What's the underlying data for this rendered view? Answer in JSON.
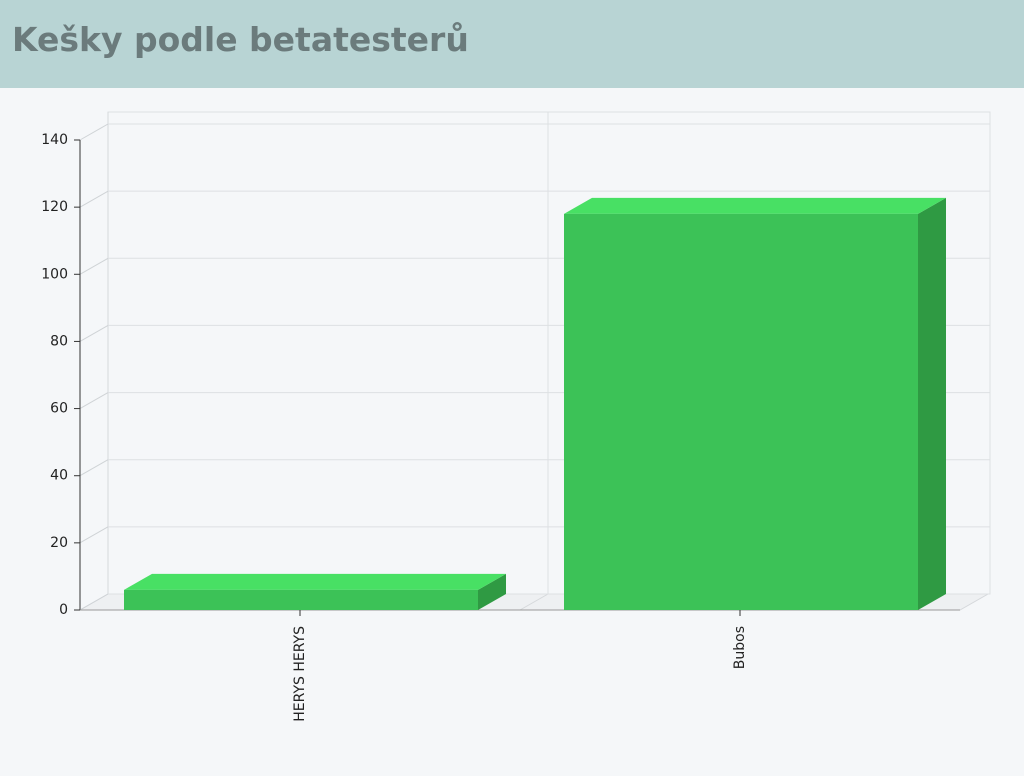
{
  "chart_data": {
    "type": "bar",
    "title": "Kešky podle betatesterů",
    "categories": [
      "HERYS HERYS",
      "Bubos"
    ],
    "values": [
      6,
      118
    ],
    "color": "#3cc257",
    "ylim": [
      0,
      140
    ],
    "yticks": [
      0,
      20,
      40,
      60,
      80,
      100,
      120,
      140
    ],
    "grid": true
  }
}
